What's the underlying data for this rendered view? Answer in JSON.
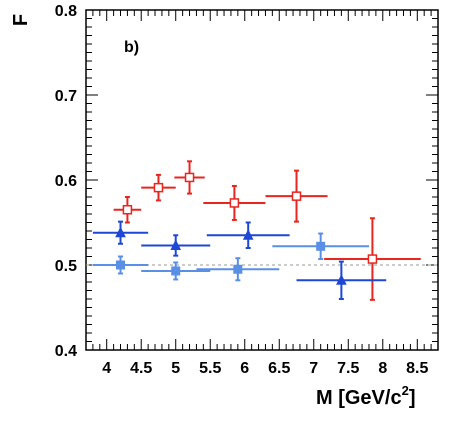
{
  "chart_data": {
    "type": "scatter",
    "panel_label": "b)",
    "ylabel": "F",
    "xlabel": {
      "main": "M [GeV/c",
      "sup": "2",
      "close": "]"
    },
    "xlim": [
      3.7,
      8.8
    ],
    "ylim": [
      0.4,
      0.8
    ],
    "x_ticks": [
      4,
      4.5,
      5,
      5.5,
      6,
      6.5,
      7,
      7.5,
      8,
      8.5
    ],
    "x_tick_labels": [
      "4",
      "4.5",
      "5",
      "5.5",
      "6",
      "6.5",
      "7",
      "7.5",
      "8",
      "8.5"
    ],
    "y_ticks": [
      0.4,
      0.5,
      0.6,
      0.7,
      0.8
    ],
    "y_tick_labels": [
      "0.4",
      "0.5",
      "0.6",
      "0.7",
      "0.8"
    ],
    "reference_line": 0.5,
    "grid": false,
    "series": [
      {
        "marker": "open-square",
        "color": "#e8251f",
        "points": [
          {
            "x": 4.3,
            "y": 0.565,
            "xerr": 0.2,
            "yerr": 0.015
          },
          {
            "x": 4.75,
            "y": 0.591,
            "xerr": 0.25,
            "yerr": 0.015
          },
          {
            "x": 5.2,
            "y": 0.603,
            "xerr": 0.22,
            "yerr": 0.019
          },
          {
            "x": 5.85,
            "y": 0.573,
            "xerr": 0.45,
            "yerr": 0.02
          },
          {
            "x": 6.75,
            "y": 0.581,
            "xerr": 0.45,
            "yerr": 0.03
          },
          {
            "x": 7.85,
            "y": 0.507,
            "xerr": 0.7,
            "yerr": 0.048
          }
        ]
      },
      {
        "marker": "filled-triangle",
        "color": "#1f47d6",
        "points": [
          {
            "x": 4.2,
            "y": 0.538,
            "xerr": 0.4,
            "yerr": 0.013
          },
          {
            "x": 5.0,
            "y": 0.523,
            "xerr": 0.5,
            "yerr": 0.012
          },
          {
            "x": 6.05,
            "y": 0.535,
            "xerr": 0.6,
            "yerr": 0.015
          },
          {
            "x": 7.4,
            "y": 0.482,
            "xerr": 0.65,
            "yerr": 0.022
          }
        ]
      },
      {
        "marker": "filled-square",
        "color": "#5a8fe6",
        "points": [
          {
            "x": 4.2,
            "y": 0.5,
            "xerr": 0.4,
            "yerr": 0.01
          },
          {
            "x": 5.0,
            "y": 0.493,
            "xerr": 0.5,
            "yerr": 0.01
          },
          {
            "x": 5.9,
            "y": 0.495,
            "xerr": 0.6,
            "yerr": 0.013
          },
          {
            "x": 7.1,
            "y": 0.522,
            "xerr": 0.7,
            "yerr": 0.015
          }
        ]
      }
    ]
  }
}
